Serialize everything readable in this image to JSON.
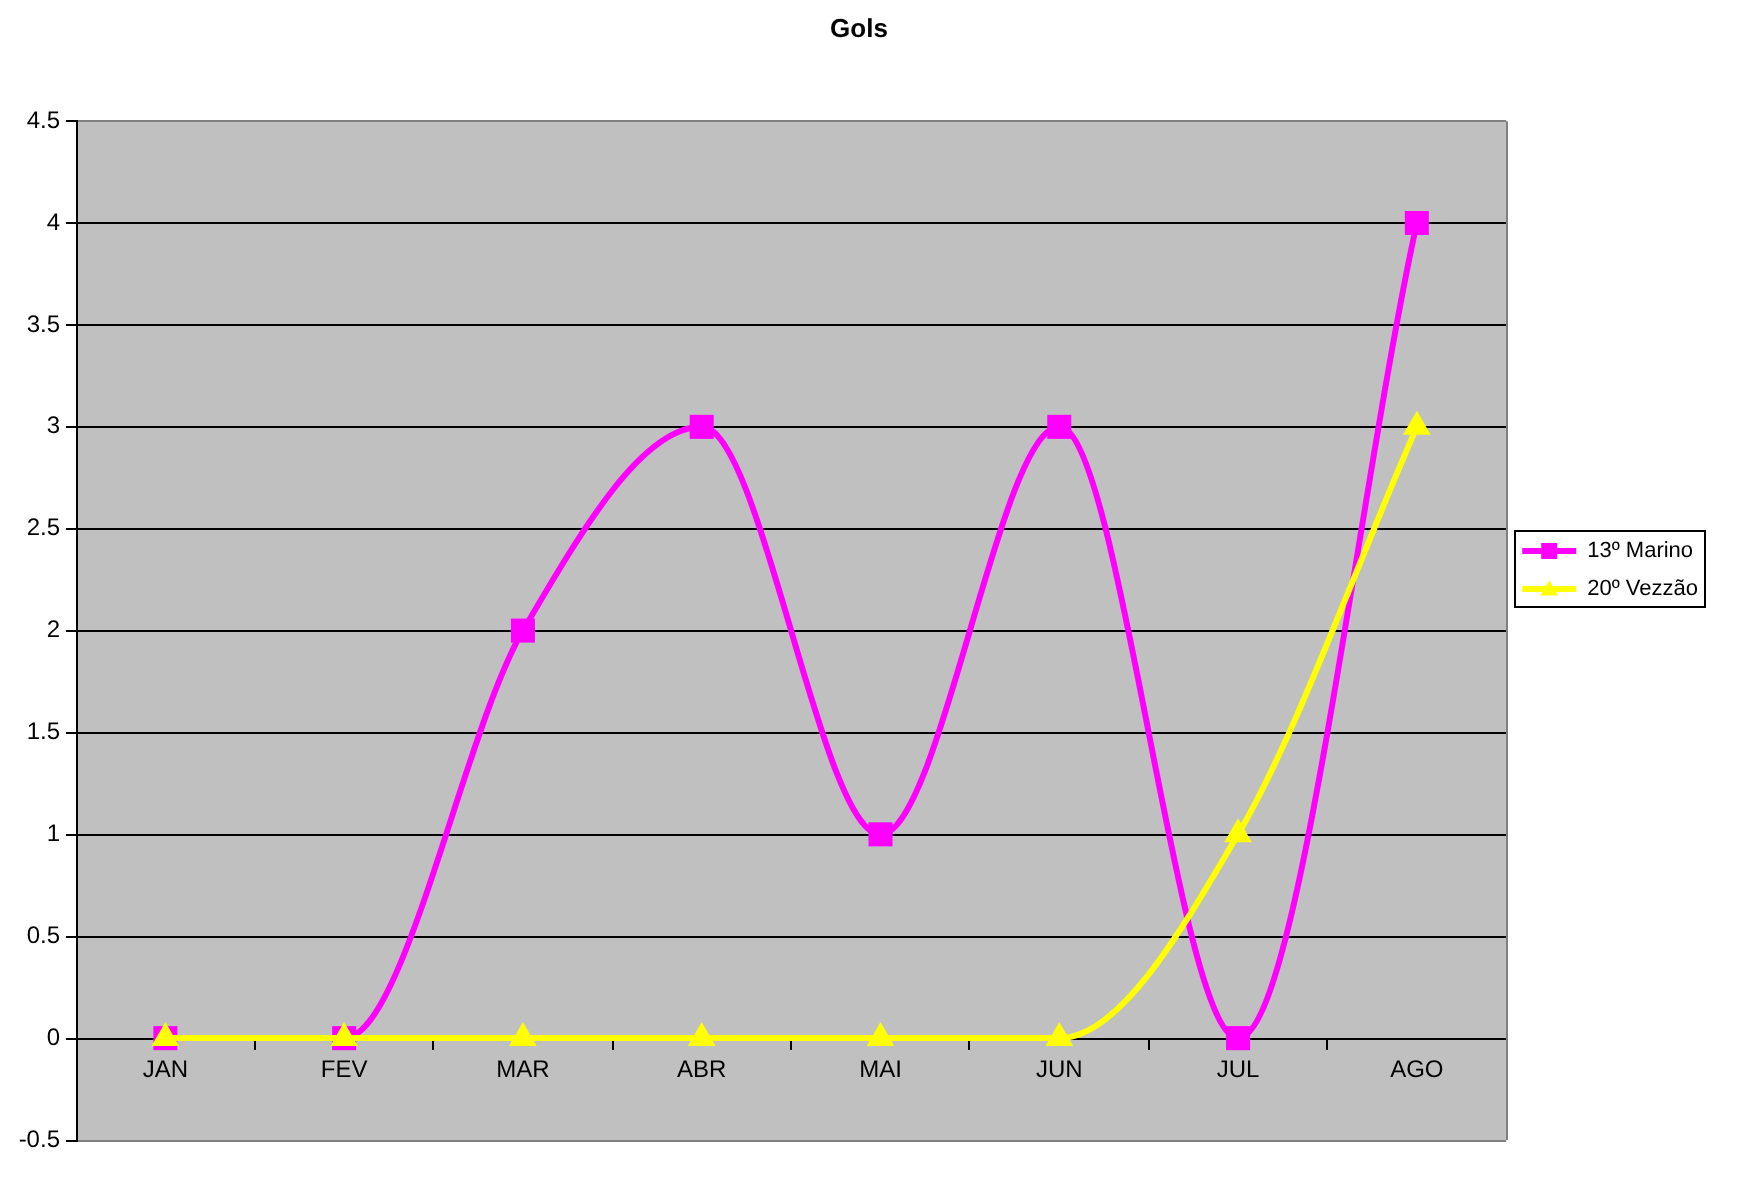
{
  "chart_data": {
    "type": "line",
    "title": "Gols",
    "categories": [
      "JAN",
      "FEV",
      "MAR",
      "ABR",
      "MAI",
      "JUN",
      "JUL",
      "AGO"
    ],
    "series": [
      {
        "name": "13º Marino",
        "color": "#ff00ff",
        "marker": "square",
        "values": [
          0,
          0,
          2,
          3,
          1,
          3,
          0,
          4
        ]
      },
      {
        "name": "20º Vezzão",
        "color": "#ffff00",
        "marker": "triangle",
        "values": [
          0,
          0,
          0,
          0,
          0,
          0,
          1,
          3
        ]
      }
    ],
    "ylim": [
      -0.5,
      4.5
    ],
    "yticks": [
      -0.5,
      0,
      0.5,
      1,
      1.5,
      2,
      2.5,
      3,
      3.5,
      4,
      4.5
    ],
    "grid": "y",
    "legend": "right",
    "line_style": "solid"
  }
}
